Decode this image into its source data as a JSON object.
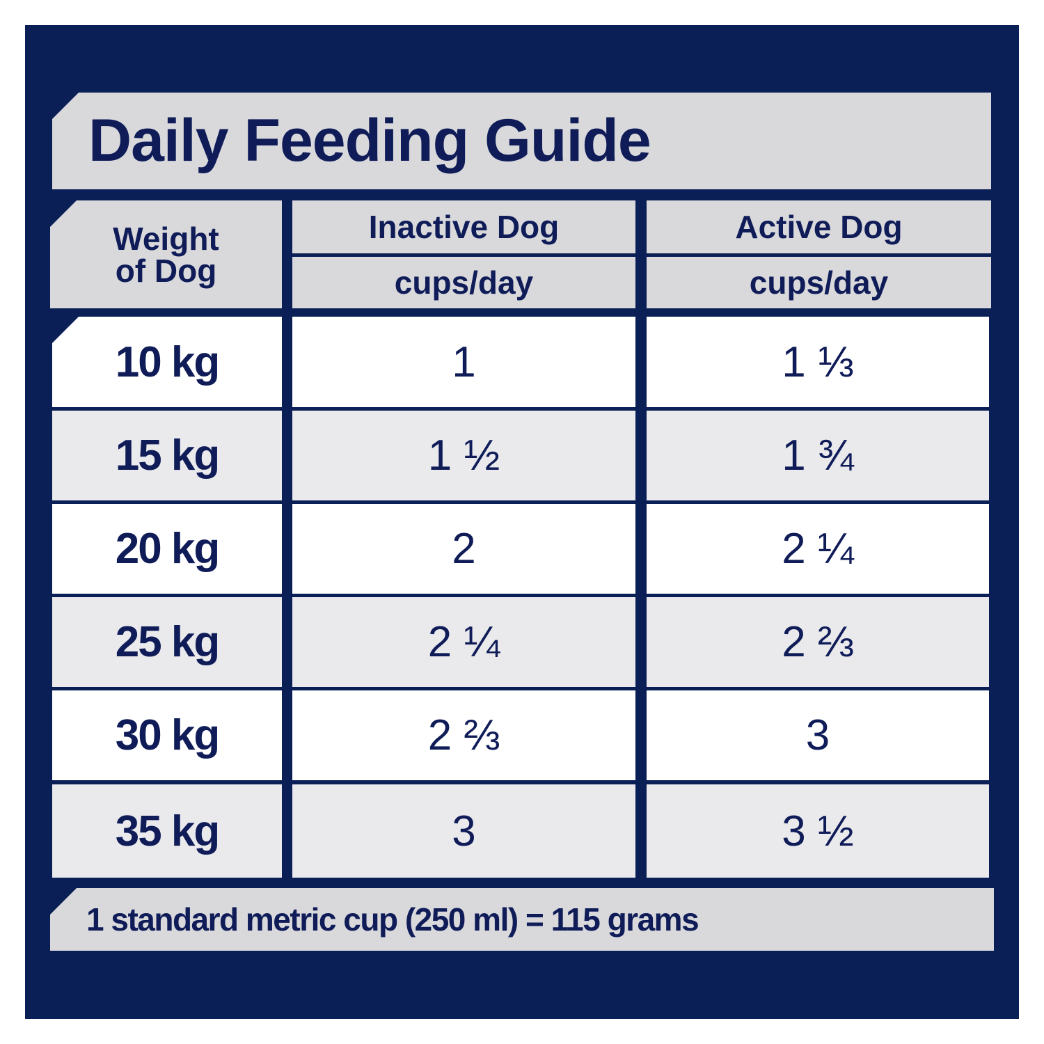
{
  "title": "Daily Feeding Guide",
  "header": {
    "weight_line1": "Weight",
    "weight_line2": "of Dog",
    "inactive": "Inactive Dog",
    "inactive_unit": "cups/day",
    "active": "Active Dog",
    "active_unit": "cups/day"
  },
  "rows": [
    {
      "weight": "10 kg",
      "inactive": "1",
      "active": "1 ⅓"
    },
    {
      "weight": "15 kg",
      "inactive": "1 ½",
      "active": "1 ¾"
    },
    {
      "weight": "20 kg",
      "inactive": "2",
      "active": "2 ¼"
    },
    {
      "weight": "25 kg",
      "inactive": "2 ¼",
      "active": "2 ⅔"
    },
    {
      "weight": "30 kg",
      "inactive": "2 ⅔",
      "active": "3"
    },
    {
      "weight": "35 kg",
      "inactive": "3",
      "active": "3 ½"
    }
  ],
  "footer": "1 standard metric cup (250 ml) = 115 grams",
  "colors": {
    "navy": "#0b1f57",
    "text": "#0f1c58",
    "header_bg": "#d9d9dc",
    "row_alt": "#eaeaed",
    "row": "#ffffff"
  }
}
